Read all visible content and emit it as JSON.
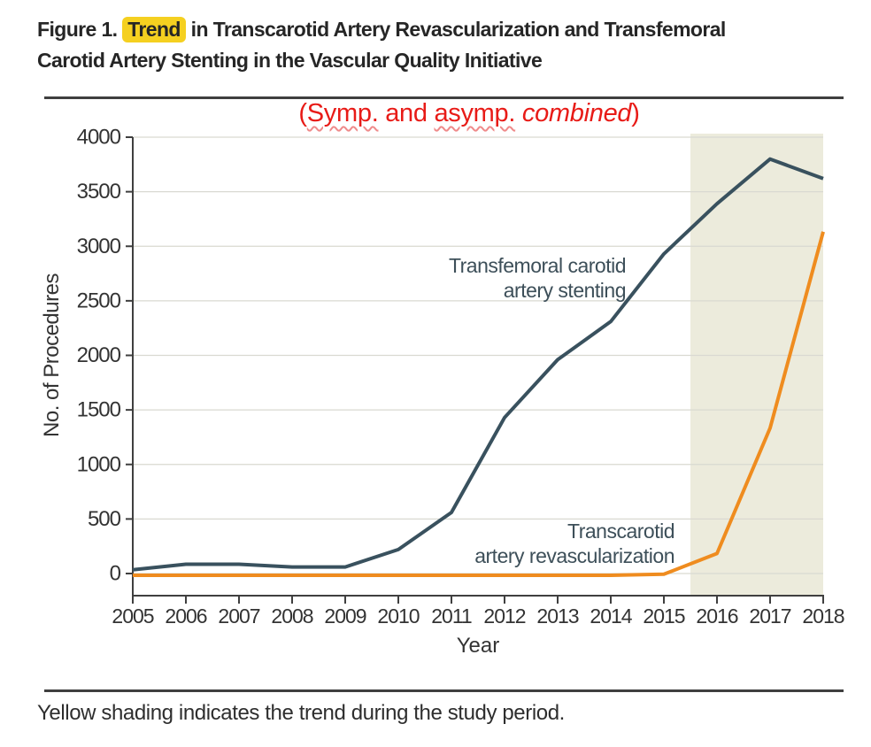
{
  "title": {
    "prefix": "Figure 1. ",
    "highlight": "Trend",
    "line1_rest": " in Transcarotid Artery Revascularization and Transfemoral",
    "line2": "Carotid Artery Stenting in the Vascular Quality Initiative"
  },
  "annotation": {
    "open": "(",
    "word1": "Symp.",
    "mid": " and ",
    "word2": "asymp.",
    "space": " ",
    "italic_word": "combined",
    "close": ")"
  },
  "caption": "Yellow shading indicates the trend during the study period.",
  "colors": {
    "highlight_yellow": "#f5d020",
    "annotation_red": "#e81b17",
    "dark_series": "#39515e",
    "orange_series": "#ef8c1f",
    "shading": "#ecebdc",
    "gridline": "#d9d9d1",
    "axis": "#3f3f3f",
    "tick_text": "#333333",
    "series_label_text": "#3d4f59"
  },
  "chart_data": {
    "type": "line",
    "title": "",
    "xlabel": "Year",
    "ylabel": "No. of Procedures",
    "x": [
      2005,
      2006,
      2007,
      2008,
      2009,
      2010,
      2011,
      2012,
      2013,
      2014,
      2015,
      2016,
      2017,
      2018
    ],
    "x_tick_labels": [
      "2005",
      "2006",
      "2007",
      "2008",
      "2009",
      "2010",
      "2011",
      "2012",
      "2013",
      "2014",
      "2015",
      "2016",
      "2017",
      "2018"
    ],
    "ylim": [
      0,
      4000
    ],
    "y_ticks": [
      0,
      500,
      1000,
      1500,
      2000,
      2500,
      3000,
      3500,
      4000
    ],
    "grid": true,
    "legend_position": "inline-labels",
    "series": [
      {
        "name": "Transfemoral carotid artery stenting",
        "color": "#39515e",
        "label_lines": [
          "Transfemoral carotid",
          "artery stenting"
        ],
        "values": [
          35,
          85,
          85,
          60,
          60,
          220,
          560,
          1430,
          1960,
          2310,
          2930,
          3390,
          3800,
          3620
        ]
      },
      {
        "name": "Transcarotid artery revascularization",
        "color": "#ef8c1f",
        "label_lines": [
          "Transcarotid",
          "artery revascularization"
        ],
        "values": [
          0,
          0,
          0,
          0,
          0,
          0,
          0,
          0,
          0,
          0,
          10,
          200,
          1350,
          3150
        ]
      }
    ],
    "shaded_region": {
      "x_start": 2015.5,
      "x_end": 2018,
      "color": "#ecebdc"
    }
  }
}
